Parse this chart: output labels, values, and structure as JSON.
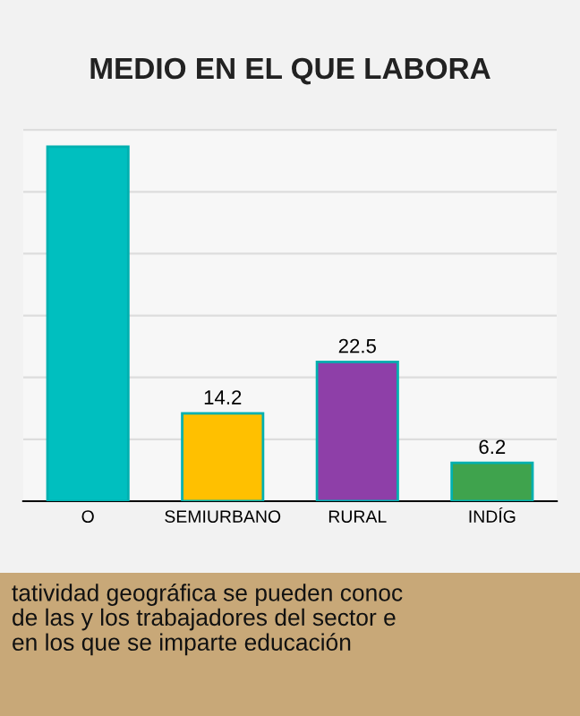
{
  "chart_data": {
    "type": "bar",
    "title": "MEDIO EN EL QUE LABORA",
    "categories": [
      "O",
      "SEMIURBANO",
      "RURAL",
      "INDÍG"
    ],
    "values": [
      57.3,
      14.2,
      22.5,
      6.2
    ],
    "value_labels": [
      null,
      "14.2",
      "22.5",
      "6.2"
    ],
    "colors": [
      "#00bfbf",
      "#ffc000",
      "#8e3fa8",
      "#3fa34d"
    ],
    "grid": "y",
    "tick_labels": "x",
    "annotations": [
      "tatividad geográfica se pueden conoc\nde las y los trabajadores del sector e\nen los que se imparte educación"
    ]
  }
}
